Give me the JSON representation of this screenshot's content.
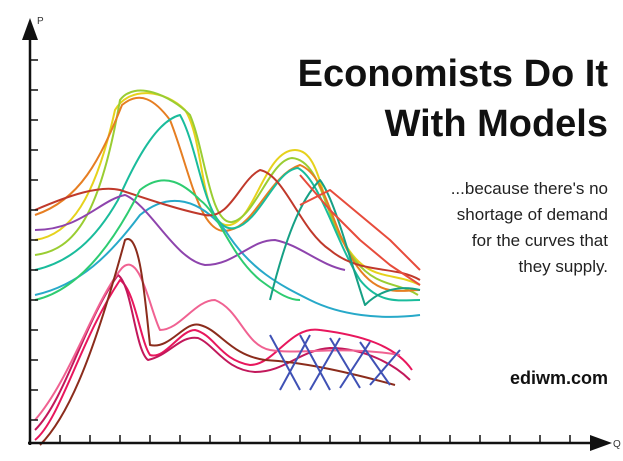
{
  "axes": {
    "y_label": "P",
    "x_label": "Q"
  },
  "title": {
    "lines": [
      "Economists Do It",
      "With Models"
    ]
  },
  "tagline": {
    "lines": [
      "...because there's no",
      "shortage of demand",
      "for the curves that",
      "they supply."
    ]
  },
  "site": "ediwm.com"
}
